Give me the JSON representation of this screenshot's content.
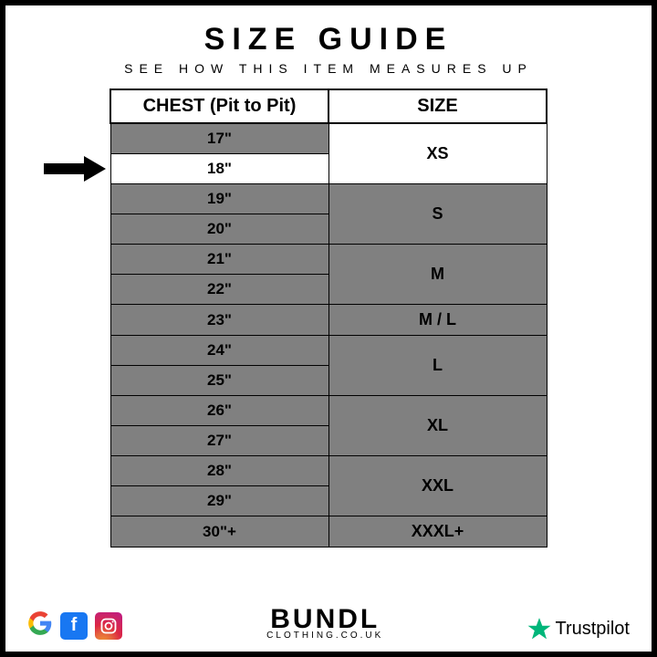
{
  "title": "SIZE GUIDE",
  "subtitle": "SEE HOW THIS ITEM MEASURES UP",
  "headers": {
    "chest": "CHEST (Pit to Pit)",
    "size": "SIZE"
  },
  "highlight_chest_indices": [
    1
  ],
  "highlight_size_indices": [
    0
  ],
  "arrow_row_index": 1,
  "groups": [
    {
      "size": "XS",
      "chests": [
        "17\"",
        "18\""
      ]
    },
    {
      "size": "S",
      "chests": [
        "19\"",
        "20\""
      ]
    },
    {
      "size": "M",
      "chests": [
        "21\"",
        "22\""
      ]
    },
    {
      "size": "M / L",
      "chests": [
        "23\""
      ]
    },
    {
      "size": "L",
      "chests": [
        "24\"",
        "25\""
      ]
    },
    {
      "size": "XL",
      "chests": [
        "26\"",
        "27\""
      ]
    },
    {
      "size": "XXL",
      "chests": [
        "28\"",
        "29\""
      ]
    },
    {
      "size": "XXXL+",
      "chests": [
        "30\"+"
      ]
    }
  ],
  "brand": {
    "name": "BUNDL",
    "domain": "CLOTHING.CO.UK"
  },
  "trustpilot": "Trustpilot",
  "colors": {
    "grey": "#808080",
    "facebook": "#1877f2",
    "instagram_a": "#f09433",
    "instagram_b": "#e6683c",
    "instagram_c": "#dc2743",
    "instagram_d": "#cc2366",
    "instagram_e": "#bc1888",
    "trust_green": "#00b67a",
    "g_blue": "#4285f4",
    "g_red": "#ea4335",
    "g_yellow": "#fbbc05",
    "g_green": "#34a853"
  }
}
